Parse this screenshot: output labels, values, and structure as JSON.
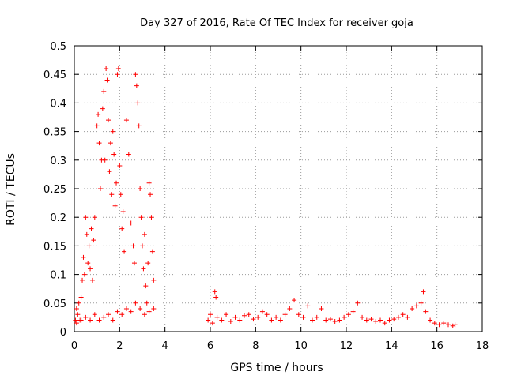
{
  "chart_data": {
    "type": "scatter",
    "title": "Day 327 of 2016, Rate Of TEC Index for receiver goja",
    "xlabel": "GPS time / hours",
    "ylabel": "ROTI / TECUs",
    "xlim": [
      0,
      18
    ],
    "ylim": [
      0,
      0.5
    ],
    "xticks": [
      0,
      2,
      4,
      6,
      8,
      10,
      12,
      14,
      16,
      18
    ],
    "xtick_labels": [
      "0",
      "2",
      "4",
      "6",
      "8",
      "10",
      "12",
      "14",
      "16",
      "18"
    ],
    "yticks": [
      0,
      0.05,
      0.1,
      0.15,
      0.2,
      0.25,
      0.3,
      0.35,
      0.4,
      0.45,
      0.5
    ],
    "ytick_labels": [
      "0",
      "0.05",
      "0.1",
      "0.15",
      "0.2",
      "0.25",
      "0.3",
      "0.35",
      "0.4",
      "0.45",
      "0.5"
    ],
    "grid": true,
    "marker": "+",
    "color": "#ff0000",
    "series": [
      {
        "name": "ROTI",
        "points": [
          [
            0.05,
            0.02
          ],
          [
            0.1,
            0.04
          ],
          [
            0.15,
            0.03
          ],
          [
            0.2,
            0.05
          ],
          [
            0.25,
            0.02
          ],
          [
            0.3,
            0.06
          ],
          [
            0.35,
            0.09
          ],
          [
            0.4,
            0.13
          ],
          [
            0.45,
            0.1
          ],
          [
            0.5,
            0.2
          ],
          [
            0.55,
            0.17
          ],
          [
            0.6,
            0.12
          ],
          [
            0.65,
            0.15
          ],
          [
            0.7,
            0.11
          ],
          [
            0.75,
            0.18
          ],
          [
            0.8,
            0.09
          ],
          [
            0.85,
            0.16
          ],
          [
            0.9,
            0.2
          ],
          [
            1.0,
            0.36
          ],
          [
            1.05,
            0.38
          ],
          [
            1.1,
            0.33
          ],
          [
            1.15,
            0.25
          ],
          [
            1.2,
            0.3
          ],
          [
            1.25,
            0.39
          ],
          [
            1.3,
            0.42
          ],
          [
            1.35,
            0.3
          ],
          [
            1.4,
            0.46
          ],
          [
            1.45,
            0.44
          ],
          [
            1.5,
            0.37
          ],
          [
            1.55,
            0.28
          ],
          [
            1.6,
            0.33
          ],
          [
            1.65,
            0.24
          ],
          [
            1.7,
            0.35
          ],
          [
            1.75,
            0.31
          ],
          [
            1.8,
            0.22
          ],
          [
            1.85,
            0.26
          ],
          [
            1.9,
            0.45
          ],
          [
            1.95,
            0.46
          ],
          [
            2.0,
            0.29
          ],
          [
            2.05,
            0.24
          ],
          [
            2.1,
            0.18
          ],
          [
            2.15,
            0.21
          ],
          [
            2.2,
            0.14
          ],
          [
            2.3,
            0.37
          ],
          [
            2.4,
            0.31
          ],
          [
            2.5,
            0.19
          ],
          [
            2.6,
            0.15
          ],
          [
            2.65,
            0.12
          ],
          [
            2.7,
            0.45
          ],
          [
            2.75,
            0.43
          ],
          [
            2.8,
            0.4
          ],
          [
            2.85,
            0.36
          ],
          [
            2.9,
            0.25
          ],
          [
            2.95,
            0.2
          ],
          [
            3.0,
            0.15
          ],
          [
            3.05,
            0.11
          ],
          [
            3.1,
            0.17
          ],
          [
            3.15,
            0.08
          ],
          [
            3.2,
            0.05
          ],
          [
            3.25,
            0.12
          ],
          [
            3.3,
            0.26
          ],
          [
            3.35,
            0.24
          ],
          [
            3.4,
            0.2
          ],
          [
            3.45,
            0.14
          ],
          [
            3.5,
            0.09
          ],
          [
            3.5,
            0.04
          ],
          [
            0.1,
            0.015
          ],
          [
            0.3,
            0.02
          ],
          [
            0.5,
            0.025
          ],
          [
            0.7,
            0.02
          ],
          [
            0.9,
            0.03
          ],
          [
            1.1,
            0.02
          ],
          [
            1.3,
            0.025
          ],
          [
            1.5,
            0.03
          ],
          [
            1.7,
            0.02
          ],
          [
            1.9,
            0.035
          ],
          [
            2.1,
            0.03
          ],
          [
            2.3,
            0.04
          ],
          [
            2.5,
            0.035
          ],
          [
            2.7,
            0.05
          ],
          [
            2.9,
            0.04
          ],
          [
            3.1,
            0.03
          ],
          [
            3.3,
            0.035
          ],
          [
            5.9,
            0.02
          ],
          [
            6.0,
            0.03
          ],
          [
            6.1,
            0.015
          ],
          [
            6.2,
            0.07
          ],
          [
            6.25,
            0.06
          ],
          [
            6.3,
            0.025
          ],
          [
            6.5,
            0.02
          ],
          [
            6.7,
            0.03
          ],
          [
            6.9,
            0.018
          ],
          [
            7.1,
            0.025
          ],
          [
            7.3,
            0.02
          ],
          [
            7.5,
            0.028
          ],
          [
            7.7,
            0.03
          ],
          [
            7.9,
            0.022
          ],
          [
            8.1,
            0.025
          ],
          [
            8.3,
            0.035
          ],
          [
            8.5,
            0.03
          ],
          [
            8.7,
            0.02
          ],
          [
            8.9,
            0.025
          ],
          [
            9.1,
            0.02
          ],
          [
            9.3,
            0.03
          ],
          [
            9.5,
            0.04
          ],
          [
            9.7,
            0.055
          ],
          [
            9.9,
            0.03
          ],
          [
            10.1,
            0.025
          ],
          [
            10.3,
            0.045
          ],
          [
            10.5,
            0.02
          ],
          [
            10.7,
            0.025
          ],
          [
            10.9,
            0.04
          ],
          [
            11.1,
            0.02
          ],
          [
            11.3,
            0.022
          ],
          [
            11.5,
            0.018
          ],
          [
            11.7,
            0.02
          ],
          [
            11.9,
            0.025
          ],
          [
            12.1,
            0.03
          ],
          [
            12.3,
            0.035
          ],
          [
            12.5,
            0.05
          ],
          [
            12.7,
            0.025
          ],
          [
            12.9,
            0.02
          ],
          [
            13.1,
            0.022
          ],
          [
            13.3,
            0.018
          ],
          [
            13.5,
            0.02
          ],
          [
            13.7,
            0.015
          ],
          [
            13.9,
            0.02
          ],
          [
            14.1,
            0.022
          ],
          [
            14.3,
            0.025
          ],
          [
            14.5,
            0.03
          ],
          [
            14.7,
            0.025
          ],
          [
            14.9,
            0.04
          ],
          [
            15.1,
            0.045
          ],
          [
            15.3,
            0.05
          ],
          [
            15.4,
            0.07
          ],
          [
            15.5,
            0.035
          ],
          [
            15.7,
            0.02
          ],
          [
            15.9,
            0.015
          ],
          [
            16.1,
            0.012
          ],
          [
            16.3,
            0.015
          ],
          [
            16.5,
            0.012
          ],
          [
            16.7,
            0.01
          ],
          [
            16.8,
            0.012
          ]
        ]
      }
    ]
  }
}
